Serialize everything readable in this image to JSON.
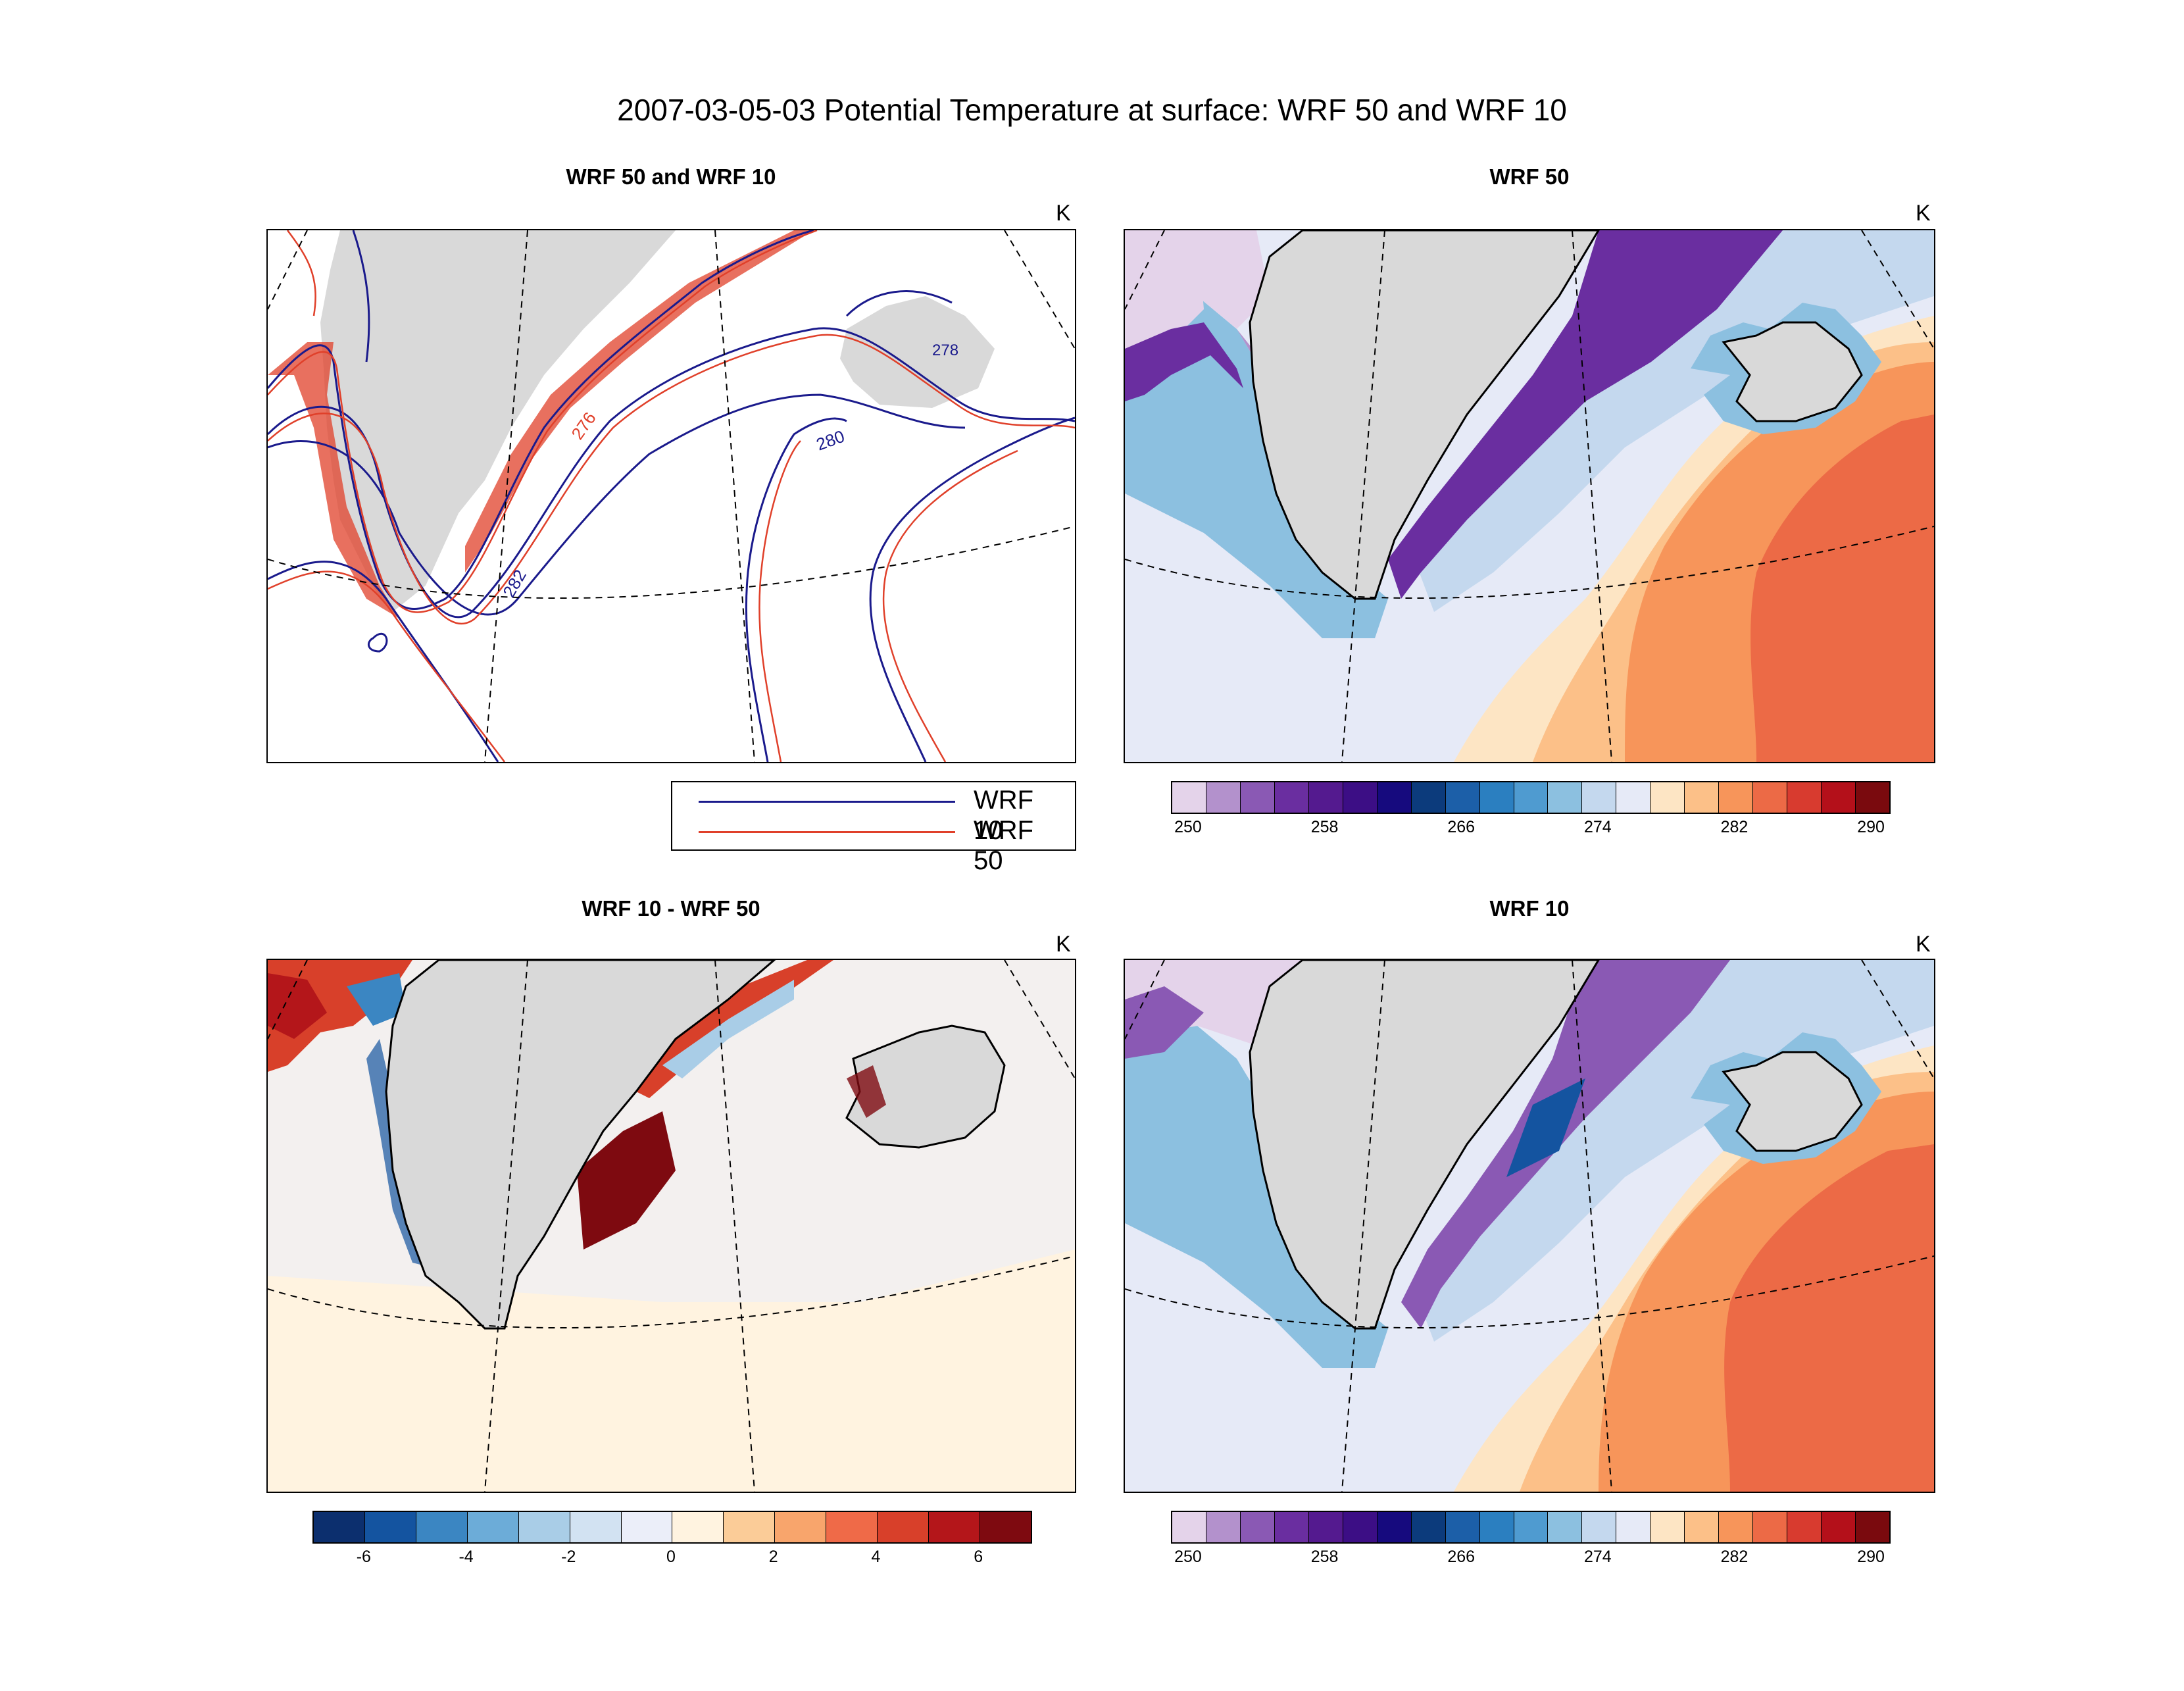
{
  "figure": {
    "title": "2007-03-05-03 Potential Temperature at surface: WRF 50 and WRF 10"
  },
  "panels": [
    {
      "id": "contours",
      "title": "WRF 50 and WRF 10",
      "unit": "K"
    },
    {
      "id": "wrf50",
      "title": "WRF 50",
      "unit": "K"
    },
    {
      "id": "diff",
      "title": "WRF 10 - WRF 50",
      "unit": "K"
    },
    {
      "id": "wrf10",
      "title": "WRF 10",
      "unit": "K"
    }
  ],
  "contour_labels": [
    "276",
    "280",
    "282",
    "278"
  ],
  "legend": {
    "items": [
      {
        "label": "WRF 10",
        "color": "#1a1a8c"
      },
      {
        "label": "WRF 50",
        "color": "#e0402a"
      }
    ]
  },
  "colorbars": {
    "temperature": {
      "colors": [
        "#e4d3ea",
        "#b391cc",
        "#8a59b4",
        "#6a2ea0",
        "#541a8f",
        "#3c0e85",
        "#160a7e",
        "#0c3b7c",
        "#1c5fa8",
        "#2b7fc0",
        "#4f9bd0",
        "#8cc0e0",
        "#c4d8ee",
        "#e6eaf7",
        "#fde5c4",
        "#fcc088",
        "#f7955a",
        "#ec6a46",
        "#d83b2f",
        "#b4101a",
        "#7a0a0e"
      ],
      "tick_labels": [
        "250",
        "258",
        "266",
        "274",
        "282",
        "290"
      ]
    },
    "difference": {
      "colors": [
        "#0c2f6e",
        "#1454a0",
        "#3b86c2",
        "#6cacd8",
        "#a9cde7",
        "#d2e2f2",
        "#ebeef9",
        "#fff3e0",
        "#fbcc98",
        "#f8a56c",
        "#ef6a48",
        "#d8402a",
        "#b4161a",
        "#7e0a10"
      ],
      "tick_labels": [
        "-6",
        "-4",
        "-2",
        "0",
        "2",
        "4",
        "6"
      ]
    }
  }
}
